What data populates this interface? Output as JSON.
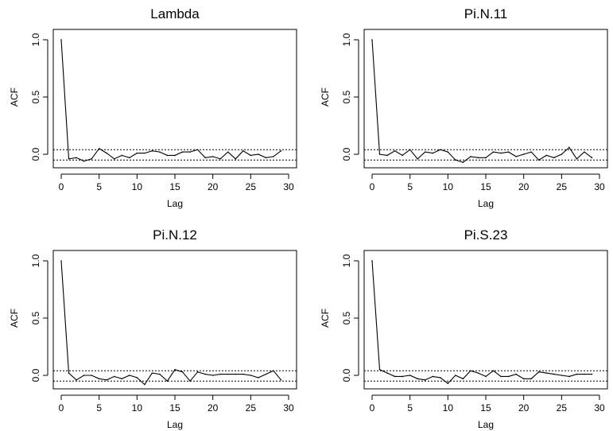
{
  "chart_data": [
    {
      "type": "line",
      "title": "Lambda",
      "xlabel": "Lag",
      "ylabel": "ACF",
      "xlim": [
        0,
        30
      ],
      "ylim": [
        -0.1,
        1.0
      ],
      "xticks": [
        "0",
        "5",
        "10",
        "15",
        "20",
        "25",
        "30"
      ],
      "yticks": [
        "0.0",
        "0.5",
        "1.0"
      ],
      "confidence_bounds": [
        0.04,
        -0.05
      ],
      "grid": false,
      "x": [
        0,
        1,
        2,
        3,
        4,
        5,
        6,
        7,
        8,
        9,
        10,
        11,
        12,
        13,
        14,
        15,
        16,
        17,
        18,
        19,
        20,
        21,
        22,
        23,
        24,
        25,
        26,
        27,
        28,
        29
      ],
      "values": [
        1.0,
        -0.04,
        -0.03,
        -0.06,
        -0.04,
        0.05,
        0.01,
        -0.04,
        -0.01,
        -0.03,
        0.01,
        0.01,
        0.03,
        0.02,
        -0.01,
        -0.01,
        0.02,
        0.02,
        0.04,
        -0.03,
        -0.02,
        -0.04,
        0.02,
        -0.04,
        0.03,
        -0.01,
        0.0,
        -0.03,
        -0.02,
        0.03
      ]
    },
    {
      "type": "line",
      "title": "Pi.N.11",
      "xlabel": "Lag",
      "ylabel": "ACF",
      "xlim": [
        0,
        30
      ],
      "ylim": [
        -0.1,
        1.0
      ],
      "xticks": [
        "0",
        "5",
        "10",
        "15",
        "20",
        "25",
        "30"
      ],
      "yticks": [
        "0.0",
        "0.5",
        "1.0"
      ],
      "confidence_bounds": [
        0.04,
        -0.05
      ],
      "grid": false,
      "x": [
        0,
        1,
        2,
        3,
        4,
        5,
        6,
        7,
        8,
        9,
        10,
        11,
        12,
        13,
        14,
        15,
        16,
        17,
        18,
        19,
        20,
        21,
        22,
        23,
        24,
        25,
        26,
        27,
        28,
        29
      ],
      "values": [
        1.0,
        0.0,
        -0.01,
        0.03,
        -0.01,
        0.04,
        -0.04,
        0.02,
        0.01,
        0.04,
        0.02,
        -0.05,
        -0.07,
        -0.02,
        -0.03,
        -0.03,
        0.02,
        0.01,
        0.02,
        -0.02,
        0.0,
        0.02,
        -0.05,
        -0.01,
        -0.03,
        0.0,
        0.06,
        -0.04,
        0.02,
        -0.03
      ]
    },
    {
      "type": "line",
      "title": "Pi.N.12",
      "xlabel": "Lag",
      "ylabel": "ACF",
      "xlim": [
        0,
        30
      ],
      "ylim": [
        -0.1,
        1.0
      ],
      "xticks": [
        "0",
        "5",
        "10",
        "15",
        "20",
        "25",
        "30"
      ],
      "yticks": [
        "0.0",
        "0.5",
        "1.0"
      ],
      "confidence_bounds": [
        0.04,
        -0.05
      ],
      "grid": false,
      "x": [
        0,
        1,
        2,
        3,
        4,
        5,
        6,
        7,
        8,
        9,
        10,
        11,
        12,
        13,
        14,
        15,
        16,
        17,
        18,
        19,
        20,
        21,
        22,
        23,
        24,
        25,
        26,
        27,
        28,
        29
      ],
      "values": [
        1.0,
        0.02,
        -0.04,
        0.0,
        0.0,
        -0.03,
        -0.04,
        -0.01,
        -0.03,
        0.0,
        -0.02,
        -0.08,
        0.02,
        0.01,
        -0.05,
        0.05,
        0.03,
        -0.05,
        0.03,
        0.01,
        0.0,
        0.01,
        0.01,
        0.01,
        0.01,
        0.0,
        -0.02,
        0.01,
        0.04,
        -0.04
      ]
    },
    {
      "type": "line",
      "title": "Pi.S.23",
      "xlabel": "Lag",
      "ylabel": "ACF",
      "xlim": [
        0,
        30
      ],
      "ylim": [
        -0.1,
        1.0
      ],
      "xticks": [
        "0",
        "5",
        "10",
        "15",
        "20",
        "25",
        "30"
      ],
      "yticks": [
        "0.0",
        "0.5",
        "1.0"
      ],
      "confidence_bounds": [
        0.04,
        -0.05
      ],
      "grid": false,
      "x": [
        0,
        1,
        2,
        3,
        4,
        5,
        6,
        7,
        8,
        9,
        10,
        11,
        12,
        13,
        14,
        15,
        16,
        17,
        18,
        19,
        20,
        21,
        22,
        23,
        24,
        25,
        26,
        27,
        28,
        29
      ],
      "values": [
        1.0,
        0.05,
        0.02,
        -0.01,
        -0.01,
        0.0,
        -0.03,
        -0.04,
        -0.01,
        -0.02,
        -0.07,
        0.0,
        -0.03,
        0.04,
        0.02,
        -0.01,
        0.04,
        -0.01,
        -0.01,
        0.01,
        -0.03,
        -0.03,
        0.03,
        0.02,
        0.01,
        0.0,
        -0.01,
        0.01,
        0.01,
        0.01
      ]
    }
  ]
}
